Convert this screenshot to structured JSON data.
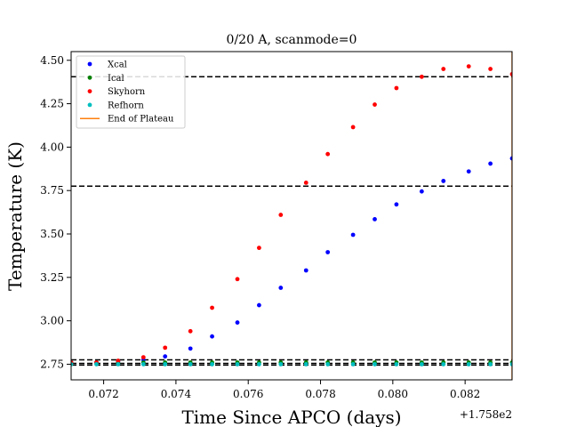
{
  "chart_data": {
    "type": "scatter",
    "title": "0/20 A, scanmode=0",
    "xlabel": "Time Since APCO (days)",
    "ylabel": "Temperature (K)",
    "x_offset_label": "+1.758e2",
    "xlim": [
      0.0711,
      0.0833
    ],
    "ylim": [
      2.66,
      4.55
    ],
    "xticks": [
      0.072,
      0.074,
      0.076,
      0.078,
      0.08,
      0.082
    ],
    "xtick_labels": [
      "0.072",
      "0.074",
      "0.076",
      "0.078",
      "0.080",
      "0.082"
    ],
    "yticks": [
      2.75,
      3.0,
      3.25,
      3.5,
      3.75,
      4.0,
      4.25,
      4.5
    ],
    "ytick_labels": [
      "2.75",
      "3.00",
      "3.25",
      "3.50",
      "3.75",
      "4.00",
      "4.25",
      "4.50"
    ],
    "grid": false,
    "legend_position": "top-left",
    "x": [
      0.0711,
      0.0718,
      0.0724,
      0.0731,
      0.0737,
      0.0744,
      0.075,
      0.0757,
      0.0763,
      0.0769,
      0.0776,
      0.0782,
      0.0789,
      0.0795,
      0.0801,
      0.0808,
      0.0814,
      0.0821,
      0.0827,
      0.0833
    ],
    "series": [
      {
        "name": "Xcal",
        "color": "#0000ff",
        "values": [
          2.76,
          2.76,
          2.765,
          2.775,
          2.795,
          2.84,
          2.91,
          2.99,
          3.09,
          3.19,
          3.29,
          3.395,
          3.495,
          3.585,
          3.67,
          3.745,
          3.805,
          3.86,
          3.905,
          3.935
        ]
      },
      {
        "name": "Ical",
        "color": "#008000",
        "values": [
          2.76,
          2.76,
          2.76,
          2.76,
          2.76,
          2.76,
          2.76,
          2.76,
          2.76,
          2.76,
          2.76,
          2.76,
          2.76,
          2.76,
          2.76,
          2.76,
          2.76,
          2.76,
          2.76,
          2.76
        ]
      },
      {
        "name": "Skyhorn",
        "color": "#ff0000",
        "values": [
          2.76,
          2.76,
          2.77,
          2.79,
          2.845,
          2.94,
          3.075,
          3.24,
          3.42,
          3.61,
          3.795,
          3.96,
          4.115,
          4.245,
          4.34,
          4.405,
          4.45,
          4.465,
          4.45,
          4.42
        ]
      },
      {
        "name": "Refhorn",
        "color": "#00bfbf",
        "values": [
          2.75,
          2.75,
          2.75,
          2.75,
          2.75,
          2.75,
          2.75,
          2.75,
          2.75,
          2.75,
          2.75,
          2.75,
          2.75,
          2.75,
          2.75,
          2.75,
          2.75,
          2.75,
          2.75,
          2.75
        ]
      }
    ],
    "end_of_plateau": {
      "name": "End of Plateau",
      "color": "#ff7f0e",
      "x": 0.0833
    },
    "hlines": [
      4.405,
      3.775,
      2.775,
      2.755,
      2.745
    ]
  }
}
